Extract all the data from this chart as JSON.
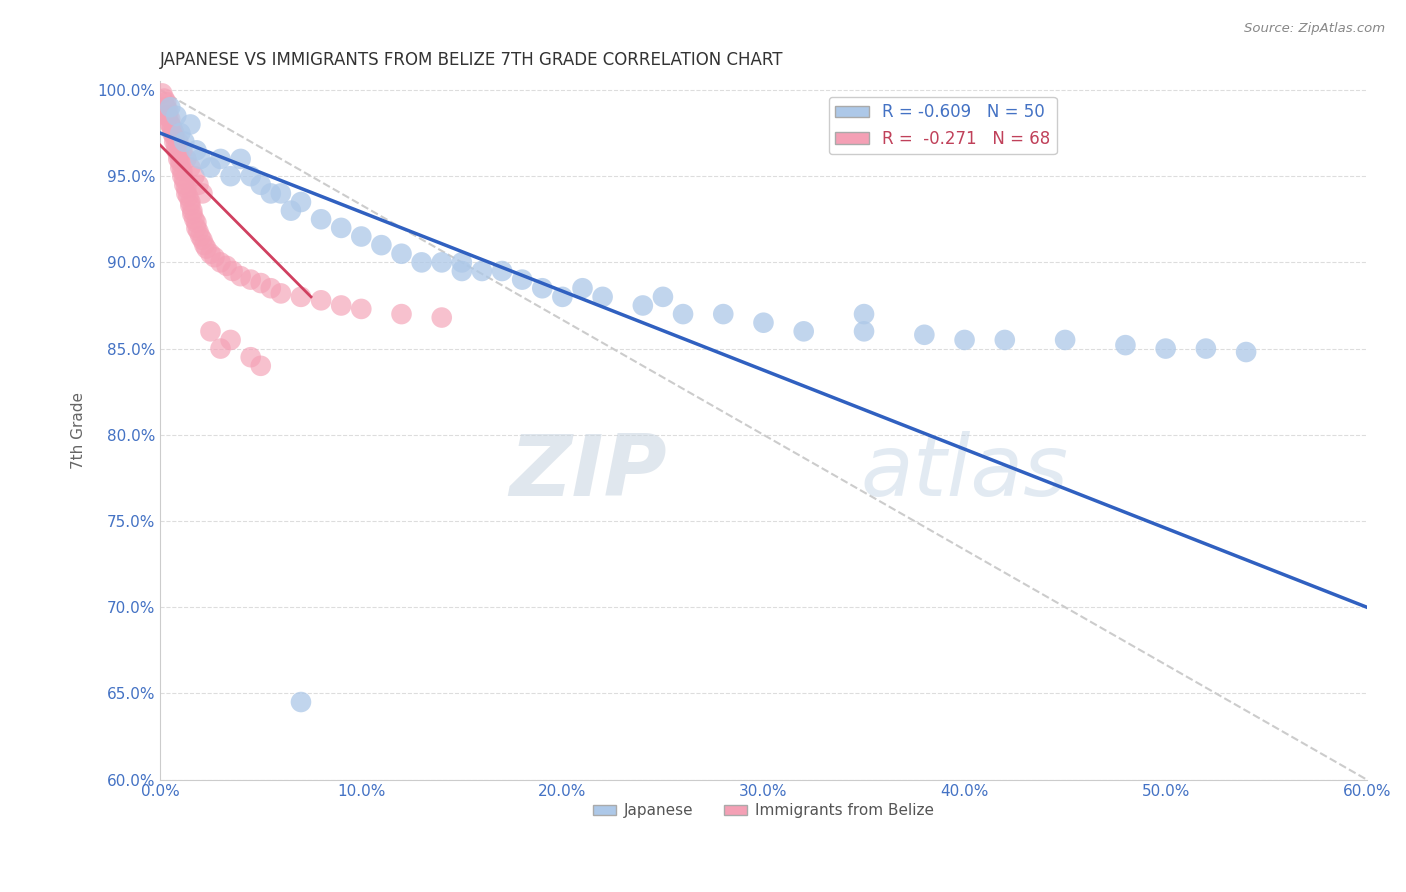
{
  "title": "JAPANESE VS IMMIGRANTS FROM BELIZE 7TH GRADE CORRELATION CHART",
  "source": "Source: ZipAtlas.com",
  "ylabel": "7th Grade",
  "xlim": [
    0.0,
    0.6
  ],
  "ylim": [
    0.6,
    1.005
  ],
  "x_ticks": [
    0.0,
    0.1,
    0.2,
    0.3,
    0.4,
    0.5,
    0.6
  ],
  "y_ticks": [
    0.6,
    0.65,
    0.7,
    0.75,
    0.8,
    0.85,
    0.9,
    0.95,
    1.0
  ],
  "x_tick_labels": [
    "0.0%",
    "10.0%",
    "20.0%",
    "30.0%",
    "40.0%",
    "50.0%",
    "60.0%"
  ],
  "y_tick_labels": [
    "60.0%",
    "65.0%",
    "70.0%",
    "75.0%",
    "80.0%",
    "85.0%",
    "90.0%",
    "95.0%",
    "100.0%"
  ],
  "legend_labels": [
    "Japanese",
    "Immigrants from Belize"
  ],
  "R_blue": -0.609,
  "N_blue": 50,
  "R_pink": -0.271,
  "N_pink": 68,
  "blue_color": "#adc8e8",
  "pink_color": "#f4a0b5",
  "blue_line_color": "#3060c0",
  "pink_line_color": "#d04060",
  "watermark_zip": "ZIP",
  "watermark_atlas": "atlas",
  "blue_scatter_x": [
    0.005,
    0.008,
    0.01,
    0.012,
    0.015,
    0.018,
    0.02,
    0.025,
    0.03,
    0.035,
    0.04,
    0.045,
    0.05,
    0.055,
    0.06,
    0.065,
    0.07,
    0.08,
    0.09,
    0.1,
    0.11,
    0.12,
    0.13,
    0.14,
    0.15,
    0.16,
    0.17,
    0.18,
    0.19,
    0.2,
    0.21,
    0.22,
    0.24,
    0.26,
    0.28,
    0.3,
    0.32,
    0.35,
    0.38,
    0.4,
    0.42,
    0.45,
    0.48,
    0.5,
    0.52,
    0.54,
    0.35,
    0.25,
    0.15,
    0.07
  ],
  "blue_scatter_y": [
    0.99,
    0.985,
    0.975,
    0.97,
    0.98,
    0.965,
    0.96,
    0.955,
    0.96,
    0.95,
    0.96,
    0.95,
    0.945,
    0.94,
    0.94,
    0.93,
    0.935,
    0.925,
    0.92,
    0.915,
    0.91,
    0.905,
    0.9,
    0.9,
    0.895,
    0.895,
    0.895,
    0.89,
    0.885,
    0.88,
    0.885,
    0.88,
    0.875,
    0.87,
    0.87,
    0.865,
    0.86,
    0.86,
    0.858,
    0.855,
    0.855,
    0.855,
    0.852,
    0.85,
    0.85,
    0.848,
    0.87,
    0.88,
    0.9,
    0.645
  ],
  "pink_scatter_x": [
    0.001,
    0.002,
    0.003,
    0.003,
    0.004,
    0.004,
    0.005,
    0.005,
    0.006,
    0.006,
    0.007,
    0.007,
    0.008,
    0.008,
    0.009,
    0.009,
    0.01,
    0.01,
    0.011,
    0.011,
    0.012,
    0.012,
    0.013,
    0.013,
    0.014,
    0.015,
    0.015,
    0.016,
    0.016,
    0.017,
    0.018,
    0.018,
    0.019,
    0.02,
    0.021,
    0.022,
    0.023,
    0.025,
    0.027,
    0.03,
    0.033,
    0.036,
    0.04,
    0.045,
    0.05,
    0.055,
    0.06,
    0.07,
    0.08,
    0.09,
    0.1,
    0.12,
    0.14,
    0.003,
    0.005,
    0.007,
    0.009,
    0.011,
    0.013,
    0.015,
    0.017,
    0.019,
    0.021,
    0.03,
    0.05,
    0.025,
    0.035,
    0.045
  ],
  "pink_scatter_y": [
    0.998,
    0.995,
    0.993,
    0.99,
    0.988,
    0.985,
    0.983,
    0.98,
    0.978,
    0.975,
    0.973,
    0.97,
    0.968,
    0.965,
    0.963,
    0.96,
    0.958,
    0.955,
    0.953,
    0.95,
    0.948,
    0.945,
    0.943,
    0.94,
    0.938,
    0.935,
    0.933,
    0.93,
    0.928,
    0.925,
    0.923,
    0.92,
    0.918,
    0.915,
    0.913,
    0.91,
    0.908,
    0.905,
    0.903,
    0.9,
    0.898,
    0.895,
    0.892,
    0.89,
    0.888,
    0.885,
    0.882,
    0.88,
    0.878,
    0.875,
    0.873,
    0.87,
    0.868,
    0.985,
    0.98,
    0.975,
    0.97,
    0.965,
    0.96,
    0.955,
    0.95,
    0.945,
    0.94,
    0.85,
    0.84,
    0.86,
    0.855,
    0.845
  ],
  "blue_line_x0": 0.0,
  "blue_line_y0": 0.975,
  "blue_line_x1": 0.6,
  "blue_line_y1": 0.7,
  "pink_line_x0": 0.0,
  "pink_line_y0": 0.968,
  "pink_line_x1": 0.075,
  "pink_line_y1": 0.88,
  "dash_line_x0": 0.0,
  "dash_line_y0": 1.0,
  "dash_line_x1": 0.6,
  "dash_line_y1": 0.6
}
